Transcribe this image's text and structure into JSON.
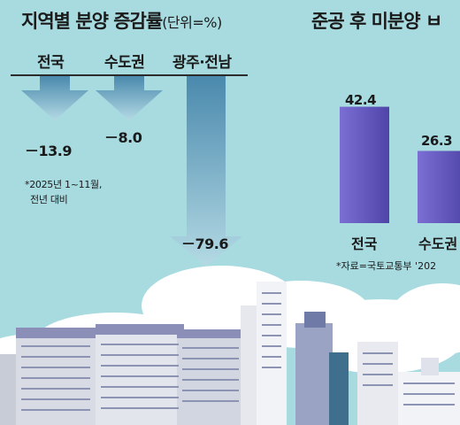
{
  "chart_data": [
    {
      "type": "bar",
      "title": "지역별 분양 증감률",
      "unit": "(단위=%)",
      "categories": [
        "전국",
        "수도권",
        "광주·전남"
      ],
      "values": [
        -13.9,
        -8.0,
        -79.6
      ],
      "value_labels": [
        "－13.9",
        "－8.0",
        "－79.6"
      ],
      "note_lines": [
        "*2025년 1~11월,",
        "전년 대비"
      ],
      "colors": {
        "arrow_top": "#4a89ad",
        "arrow_bottom": "#b4dae4"
      }
    },
    {
      "type": "bar",
      "title": "준공 후 미분양 ㅂ",
      "categories": [
        "전국",
        "수도권"
      ],
      "values": [
        42.4,
        26.3
      ],
      "value_labels": [
        "42.4",
        "26.3"
      ],
      "source": "*자료=국토교통부 '202",
      "colors": {
        "bar": "#6b5fc4",
        "bar_dark": "#3d3393"
      }
    }
  ]
}
